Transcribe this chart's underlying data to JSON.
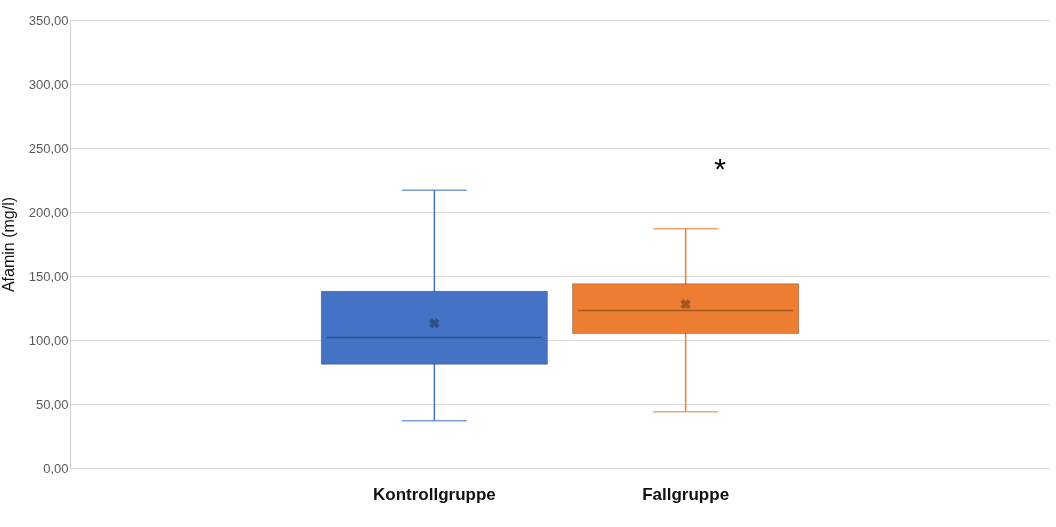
{
  "chart_data": {
    "type": "box",
    "ylabel": "Afamin (mg/l)",
    "categories": [
      "Kontrollgruppe",
      "Fallgruppe"
    ],
    "colors": [
      "#4472c4",
      "#ed7d31"
    ],
    "boxes": [
      {
        "low": 37,
        "q1": 81,
        "median": 102,
        "q3": 138,
        "high": 217,
        "mean": 113
      },
      {
        "low": 44,
        "q1": 105,
        "median": 123,
        "q3": 144,
        "high": 187,
        "mean": 128
      }
    ],
    "ylim": [
      0,
      350
    ],
    "yticks": [
      {
        "value": 0,
        "label": "0,00"
      },
      {
        "value": 50,
        "label": "50,00"
      },
      {
        "value": 100,
        "label": "100,00"
      },
      {
        "value": 150,
        "label": "150,00"
      },
      {
        "value": 200,
        "label": "200,00"
      },
      {
        "value": 250,
        "label": "250,00"
      },
      {
        "value": 300,
        "label": "300,00"
      },
      {
        "value": 350,
        "label": "350,00"
      }
    ],
    "grid": "y",
    "legend": false,
    "annotations": [
      "*"
    ]
  }
}
